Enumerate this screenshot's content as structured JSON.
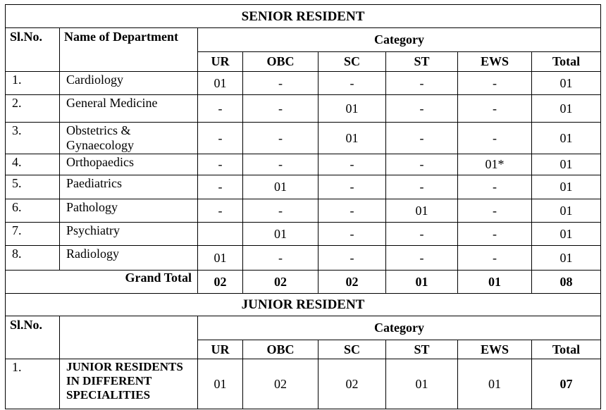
{
  "senior": {
    "title": "SENIOR RESIDENT",
    "col_slno": "Sl.No.",
    "col_dept": "Name of Department",
    "col_category": "Category",
    "categories": [
      "UR",
      "OBC",
      "SC",
      "ST",
      "EWS",
      "Total"
    ],
    "rows": [
      {
        "sl": "1.",
        "dept": "Cardiology",
        "vals": [
          "01",
          "-",
          "-",
          "-",
          "-",
          "01"
        ]
      },
      {
        "sl": "2.",
        "dept": "General Medicine",
        "vals": [
          "-",
          "-",
          "01",
          "-",
          "-",
          "01"
        ]
      },
      {
        "sl": "3.",
        "dept": "Obstetrics & Gynaecology",
        "vals": [
          "-",
          "-",
          "01",
          "-",
          "-",
          "01"
        ]
      },
      {
        "sl": "4.",
        "dept": "Orthopaedics",
        "vals": [
          "-",
          "-",
          "-",
          "-",
          "01*",
          "01"
        ]
      },
      {
        "sl": "5.",
        "dept": "Paediatrics",
        "vals": [
          "-",
          "01",
          "-",
          "-",
          "-",
          "01"
        ]
      },
      {
        "sl": "6.",
        "dept": "Pathology",
        "vals": [
          "-",
          "-",
          "-",
          "01",
          "-",
          "01"
        ]
      },
      {
        "sl": "7.",
        "dept": "Psychiatry",
        "vals": [
          "",
          "01",
          "-",
          "-",
          "-",
          "01"
        ]
      },
      {
        "sl": "8.",
        "dept": "Radiology",
        "vals": [
          "01",
          "-",
          "-",
          "-",
          "-",
          "01"
        ]
      }
    ],
    "grand_total_label": "Grand Total",
    "grand_total": [
      "02",
      "02",
      "02",
      "01",
      "01",
      "08"
    ]
  },
  "junior": {
    "title": "JUNIOR RESIDENT",
    "col_slno": "Sl.No.",
    "col_category": "Category",
    "categories": [
      "UR",
      "OBC",
      "SC",
      "ST",
      "EWS",
      "Total"
    ],
    "rows": [
      {
        "sl": "1.",
        "dept": "JUNIOR RESIDENTS IN DIFFERENT SPECIALITIES",
        "vals": [
          "01",
          "02",
          "02",
          "01",
          "01",
          "07"
        ]
      }
    ]
  }
}
